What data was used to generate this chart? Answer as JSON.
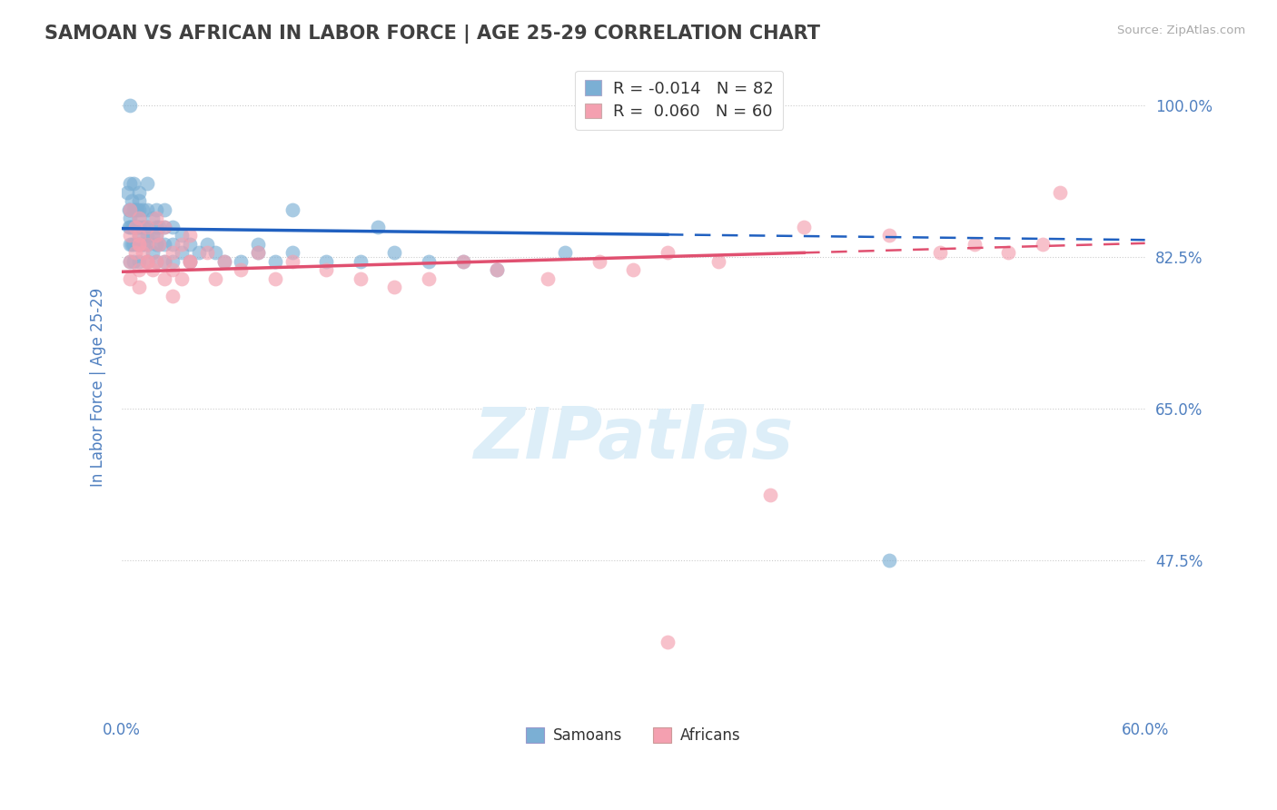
{
  "title": "SAMOAN VS AFRICAN IN LABOR FORCE | AGE 25-29 CORRELATION CHART",
  "source_text": "Source: ZipAtlas.com",
  "ylabel": "In Labor Force | Age 25-29",
  "xlim": [
    0.0,
    0.6
  ],
  "ylim": [
    0.3,
    1.05
  ],
  "ytick_labels_shown": [
    0.475,
    0.65,
    0.825,
    1.0
  ],
  "hlines": [
    0.475,
    0.65,
    0.825,
    1.0
  ],
  "legend_blue_r": "R = -0.014",
  "legend_blue_n": "N = 82",
  "legend_pink_r": "R =  0.060",
  "legend_pink_n": "N = 60",
  "blue_color": "#7bafd4",
  "pink_color": "#f4a0b0",
  "blue_line_color": "#2060c0",
  "pink_line_color": "#e05070",
  "title_color": "#404040",
  "axis_label_color": "#5080c0",
  "watermark_text": "ZIPatlas",
  "watermark_color": "#ddeef8",
  "samoans_x": [
    0.003,
    0.004,
    0.004,
    0.005,
    0.005,
    0.005,
    0.005,
    0.005,
    0.005,
    0.006,
    0.006,
    0.006,
    0.007,
    0.007,
    0.007,
    0.007,
    0.007,
    0.008,
    0.008,
    0.009,
    0.009,
    0.009,
    0.01,
    0.01,
    0.01,
    0.01,
    0.01,
    0.01,
    0.01,
    0.01,
    0.012,
    0.012,
    0.012,
    0.013,
    0.013,
    0.015,
    0.015,
    0.015,
    0.015,
    0.015,
    0.015,
    0.018,
    0.018,
    0.018,
    0.02,
    0.02,
    0.02,
    0.02,
    0.02,
    0.022,
    0.022,
    0.025,
    0.025,
    0.025,
    0.025,
    0.03,
    0.03,
    0.03,
    0.035,
    0.035,
    0.04,
    0.04,
    0.045,
    0.05,
    0.055,
    0.06,
    0.07,
    0.08,
    0.09,
    0.1,
    0.12,
    0.14,
    0.16,
    0.18,
    0.2,
    0.22,
    0.26,
    0.1,
    0.15,
    0.08,
    0.45,
    0.005
  ],
  "samoans_y": [
    0.9,
    0.88,
    0.86,
    0.91,
    0.88,
    0.86,
    0.84,
    0.82,
    0.87,
    0.89,
    0.86,
    0.84,
    0.91,
    0.88,
    0.86,
    0.84,
    0.82,
    0.88,
    0.86,
    0.88,
    0.86,
    0.84,
    0.9,
    0.88,
    0.86,
    0.84,
    0.82,
    0.85,
    0.87,
    0.89,
    0.88,
    0.86,
    0.84,
    0.86,
    0.84,
    0.91,
    0.88,
    0.86,
    0.84,
    0.82,
    0.85,
    0.87,
    0.85,
    0.83,
    0.88,
    0.86,
    0.84,
    0.82,
    0.85,
    0.86,
    0.84,
    0.88,
    0.86,
    0.84,
    0.82,
    0.86,
    0.84,
    0.82,
    0.85,
    0.83,
    0.84,
    0.82,
    0.83,
    0.84,
    0.83,
    0.82,
    0.82,
    0.83,
    0.82,
    0.83,
    0.82,
    0.82,
    0.83,
    0.82,
    0.82,
    0.81,
    0.83,
    0.88,
    0.86,
    0.84,
    0.475,
    1.0
  ],
  "africans_x": [
    0.005,
    0.005,
    0.005,
    0.005,
    0.008,
    0.008,
    0.01,
    0.01,
    0.01,
    0.01,
    0.01,
    0.012,
    0.015,
    0.015,
    0.015,
    0.018,
    0.02,
    0.02,
    0.022,
    0.025,
    0.025,
    0.03,
    0.03,
    0.035,
    0.04,
    0.04,
    0.05,
    0.055,
    0.06,
    0.07,
    0.08,
    0.09,
    0.1,
    0.12,
    0.14,
    0.16,
    0.18,
    0.2,
    0.22,
    0.25,
    0.28,
    0.3,
    0.32,
    0.35,
    0.4,
    0.45,
    0.48,
    0.5,
    0.52,
    0.54,
    0.01,
    0.015,
    0.02,
    0.025,
    0.03,
    0.035,
    0.04,
    0.55,
    0.38,
    0.32
  ],
  "africans_y": [
    0.88,
    0.85,
    0.82,
    0.8,
    0.86,
    0.83,
    0.87,
    0.84,
    0.81,
    0.79,
    0.85,
    0.83,
    0.86,
    0.84,
    0.82,
    0.81,
    0.85,
    0.82,
    0.84,
    0.82,
    0.8,
    0.83,
    0.81,
    0.8,
    0.85,
    0.82,
    0.83,
    0.8,
    0.82,
    0.81,
    0.83,
    0.8,
    0.82,
    0.81,
    0.8,
    0.79,
    0.8,
    0.82,
    0.81,
    0.8,
    0.82,
    0.81,
    0.83,
    0.82,
    0.86,
    0.85,
    0.83,
    0.84,
    0.83,
    0.84,
    0.84,
    0.82,
    0.87,
    0.86,
    0.78,
    0.84,
    0.82,
    0.9,
    0.55,
    0.38
  ],
  "blue_line_x0": 0.0,
  "blue_line_x_solid_end": 0.32,
  "blue_line_x_end": 0.6,
  "blue_line_y0": 0.858,
  "blue_line_slope": -0.022,
  "pink_line_x0": 0.0,
  "pink_line_x_solid_end": 0.4,
  "pink_line_x_end": 0.6,
  "pink_line_y0": 0.808,
  "pink_line_slope": 0.055
}
